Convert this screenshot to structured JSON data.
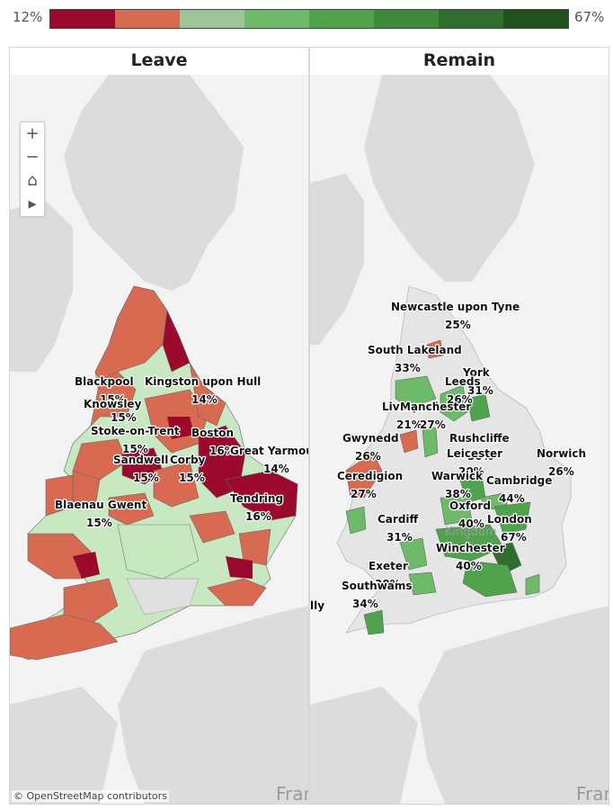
{
  "legend": {
    "min_label": "12%",
    "max_label": "67%",
    "colors": [
      "#9b0a2d",
      "#d96a52",
      "#9ec49a",
      "#6dbb6a",
      "#4fa34c",
      "#3d8a3b",
      "#2f6e2e",
      "#22521f"
    ]
  },
  "panels": {
    "leave": {
      "title": "Leave",
      "labels": [
        {
          "name": "Blackpool",
          "pct": "15%"
        },
        {
          "name": "Knowsley",
          "pct": "15%"
        },
        {
          "name": "Kingston upon Hull",
          "pct": "14%"
        },
        {
          "name": "Stoke-on-Trent",
          "pct": "15%"
        },
        {
          "name": "Boston",
          "pct": "16%"
        },
        {
          "name": "Sandwell",
          "pct": "15%"
        },
        {
          "name": "Corby",
          "pct": "15%"
        },
        {
          "name": "Great Yarmouth",
          "pct": "14%"
        },
        {
          "name": "Tendring",
          "pct": "16%"
        },
        {
          "name": "Blaenau Gwent",
          "pct": "15%"
        }
      ],
      "ghost_text": "Fran"
    },
    "remain": {
      "title": "Remain",
      "labels": [
        {
          "name": "Newcastle upon Tyne",
          "pct": "25%"
        },
        {
          "name": "South Lakeland",
          "pct": "33%"
        },
        {
          "name": "York",
          "pct": "31%"
        },
        {
          "name": "Leeds",
          "pct": "26%"
        },
        {
          "name": "Liverpool",
          "pct": "21%"
        },
        {
          "name": "Manchester",
          "pct": "27%"
        },
        {
          "name": "Gwynedd",
          "pct": "26%"
        },
        {
          "name": "Rushcliffe",
          "pct": "30%"
        },
        {
          "name": "Leicester",
          "pct": "20%"
        },
        {
          "name": "Norwich",
          "pct": "26%"
        },
        {
          "name": "Ceredigion",
          "pct": "27%"
        },
        {
          "name": "Warwick",
          "pct": "38%"
        },
        {
          "name": "Cambridge",
          "pct": "44%"
        },
        {
          "name": "Oxford",
          "pct": "40%"
        },
        {
          "name": "Cardiff",
          "pct": "31%"
        },
        {
          "name": "London",
          "pct": "67%"
        },
        {
          "name": "Winchester",
          "pct": "40%"
        },
        {
          "name": "Exeter",
          "pct": "38%"
        },
        {
          "name": "Southwams",
          "pct": "34%"
        }
      ],
      "ghost_kingdom": "Kingdom",
      "ghost_left": "lly",
      "ghost_text": "Fran"
    }
  },
  "zoom_controls": {
    "zoom_in": "+",
    "zoom_out": "−",
    "home": "⌂",
    "play": "▸"
  },
  "attribution": "© OpenStreetMap contributors"
}
